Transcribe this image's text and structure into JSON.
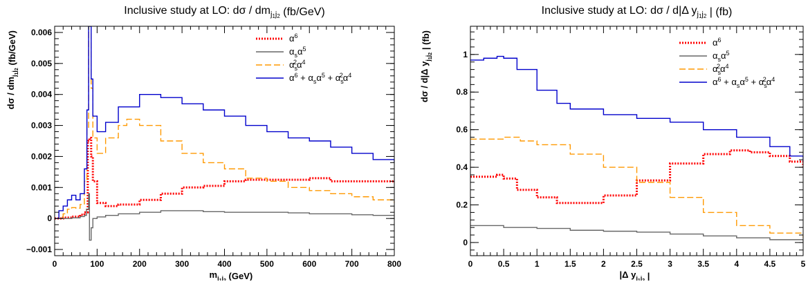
{
  "chart_data": [
    {
      "type": "line",
      "step": true,
      "title": "Inclusive study at LO: dσ / dm",
      "title_sub": "j",
      "title_subsub": "1",
      "title_sub2": "j",
      "title_subsub2": "2",
      "title_units": "(fb/GeV)",
      "xlabel": "m",
      "xlabel_sub": "j",
      "xlabel_subsub": "1",
      "xlabel_sub2": "j",
      "xlabel_subsub2": "2",
      "xlabel_units": "(GeV)",
      "ylabel": "dσ / dm",
      "ylabel_sub": "j",
      "ylabel_subsub": "1",
      "ylabel_sub2": "j",
      "ylabel_subsub2": "2",
      "ylabel_units": "(fb/GeV)",
      "xlim": [
        0,
        800
      ],
      "ylim": [
        -0.0012,
        0.0062
      ],
      "xticks": [
        0,
        100,
        200,
        300,
        400,
        500,
        600,
        700,
        800
      ],
      "xtick_labels": [
        "0",
        "100",
        "200",
        "300",
        "400",
        "500",
        "600",
        "700",
        "800"
      ],
      "yticks": [
        -0.001,
        0,
        0.001,
        0.002,
        0.003,
        0.004,
        0.005,
        0.006
      ],
      "ytick_labels": [
        "−0.001",
        "0",
        "0.001",
        "0.002",
        "0.003",
        "0.004",
        "0.005",
        "0.006"
      ],
      "legend_position": "top-right",
      "series": [
        {
          "name": "α6",
          "color": "#ff0000",
          "dash": "dotted",
          "x": [
            0,
            20,
            40,
            60,
            70,
            78,
            82,
            86,
            90,
            100,
            120,
            150,
            200,
            250,
            300,
            350,
            400,
            450,
            500,
            550,
            600,
            650,
            700,
            750,
            800
          ],
          "y": [
            0.0,
            3e-05,
            6e-05,
            0.00012,
            0.0002,
            0.0025,
            0.0026,
            0.002,
            0.0012,
            0.0005,
            0.0004,
            0.00045,
            0.0006,
            0.0008,
            0.001,
            0.00105,
            0.0012,
            0.00125,
            0.00125,
            0.00125,
            0.0013,
            0.0012,
            0.0012,
            0.0012,
            0.00117
          ]
        },
        {
          "name": "αsα5",
          "color": "#666666",
          "dash": "solid",
          "x": [
            0,
            20,
            40,
            60,
            70,
            75,
            80,
            82,
            86,
            90,
            100,
            120,
            150,
            200,
            250,
            300,
            350,
            400,
            450,
            500,
            550,
            600,
            650,
            700,
            750,
            800
          ],
          "y": [
            0.0,
            0.0,
            2e-05,
            6e-05,
            0.0001,
            0.0003,
            0.0008,
            -0.0007,
            -0.0003,
            0.0,
            5e-05,
            0.0001,
            0.00015,
            0.0002,
            0.00025,
            0.00025,
            0.00022,
            0.0002,
            0.0002,
            0.0002,
            0.00018,
            0.00015,
            0.00015,
            0.00012,
            0.0001,
            0.0001
          ]
        },
        {
          "name": "αs2α4",
          "color": "#ff9900",
          "dash": "dashed",
          "x": [
            0,
            20,
            30,
            40,
            50,
            60,
            70,
            76,
            80,
            83,
            86,
            90,
            100,
            120,
            150,
            170,
            200,
            250,
            300,
            350,
            400,
            450,
            500,
            550,
            600,
            650,
            700,
            750,
            800
          ],
          "y": [
            0.0,
            0.00015,
            0.0003,
            0.00035,
            0.00033,
            0.00045,
            0.0012,
            0.0029,
            0.006,
            0.006,
            0.0042,
            0.0026,
            0.0021,
            0.0026,
            0.003,
            0.0032,
            0.003,
            0.0025,
            0.0021,
            0.0018,
            0.0016,
            0.0013,
            0.0012,
            0.001,
            0.0009,
            0.0008,
            0.0007,
            0.0006,
            0.0005
          ]
        },
        {
          "name": "α6 + αsα5 + αs2α4",
          "color": "#0000cc",
          "dash": "solid",
          "x": [
            0,
            10,
            20,
            30,
            40,
            50,
            60,
            70,
            76,
            80,
            83,
            86,
            90,
            100,
            120,
            150,
            200,
            250,
            300,
            350,
            400,
            450,
            500,
            550,
            600,
            650,
            700,
            750,
            800
          ],
          "y": [
            0.0,
            0.00025,
            0.0004,
            0.0006,
            0.00075,
            0.0006,
            0.0008,
            0.0016,
            0.0035,
            0.0062,
            0.0062,
            0.0045,
            0.0033,
            0.0028,
            0.0031,
            0.0036,
            0.004,
            0.0039,
            0.0037,
            0.0035,
            0.0033,
            0.003,
            0.0028,
            0.0026,
            0.0025,
            0.0023,
            0.0021,
            0.0019,
            0.0018
          ]
        }
      ],
      "legend": [
        {
          "base": "α",
          "sup": "6",
          "sub": "",
          "extra": ""
        },
        {
          "base": "α",
          "sub": "s",
          "base2": "α",
          "sup2": "5"
        },
        {
          "base": "α",
          "sub": "s",
          "sup": "2",
          "base2": "α",
          "sup2": "4"
        },
        {
          "text": "α⁶ +  αₛα⁵ + αₛ²α⁴"
        }
      ]
    },
    {
      "type": "line",
      "step": true,
      "title": "Inclusive study at LO: dσ / d|Δ y",
      "title_sub": "j",
      "title_subsub": "1",
      "title_sub2": "j",
      "title_subsub2": "2",
      "title_units": "|  (fb)",
      "xlabel": "|Δ y",
      "xlabel_sub": "j",
      "xlabel_subsub": "1",
      "xlabel_sub2": "j",
      "xlabel_subsub2": "2",
      "xlabel_units": "|",
      "ylabel": "dσ / d|Δ y",
      "ylabel_sub": "j",
      "ylabel_subsub": "1",
      "ylabel_sub2": "j",
      "ylabel_subsub2": "2",
      "ylabel_units": "|  (fb)",
      "xlim": [
        0,
        5
      ],
      "ylim": [
        -0.07,
        1.15
      ],
      "xticks": [
        0,
        0.5,
        1,
        1.5,
        2,
        2.5,
        3,
        3.5,
        4,
        4.5,
        5
      ],
      "xtick_labels": [
        "0",
        "0.5",
        "1",
        "1.5",
        "2",
        "2.5",
        "3",
        "3.5",
        "4",
        "4.5",
        "5"
      ],
      "yticks": [
        0,
        0.2,
        0.4,
        0.6,
        0.8,
        1
      ],
      "ytick_labels": [
        "0",
        "0.2",
        "0.4",
        "0.6",
        "0.8",
        "1"
      ],
      "legend_position": "top-right",
      "series": [
        {
          "name": "α6",
          "color": "#ff0000",
          "dash": "dotted",
          "x": [
            0,
            0.2,
            0.4,
            0.5,
            0.7,
            1.0,
            1.3,
            1.6,
            2.0,
            2.5,
            3.0,
            3.5,
            3.9,
            4.2,
            4.5,
            4.8,
            5.0
          ],
          "y": [
            0.35,
            0.35,
            0.36,
            0.34,
            0.28,
            0.24,
            0.21,
            0.21,
            0.25,
            0.33,
            0.42,
            0.47,
            0.49,
            0.48,
            0.46,
            0.43,
            0.4
          ]
        },
        {
          "name": "αsα5",
          "color": "#666666",
          "dash": "solid",
          "x": [
            0,
            0.5,
            1.0,
            1.5,
            2.0,
            2.5,
            3.0,
            3.5,
            4.0,
            4.5,
            5.0
          ],
          "y": [
            0.09,
            0.08,
            0.075,
            0.065,
            0.06,
            0.055,
            0.045,
            0.035,
            0.025,
            0.015,
            0.01
          ]
        },
        {
          "name": "αs2α4",
          "color": "#ff9900",
          "dash": "dashed",
          "x": [
            0,
            0.25,
            0.5,
            0.75,
            1.0,
            1.5,
            2.0,
            2.5,
            3.0,
            3.5,
            4.0,
            4.5,
            5.0
          ],
          "y": [
            0.55,
            0.55,
            0.56,
            0.54,
            0.52,
            0.47,
            0.4,
            0.32,
            0.24,
            0.16,
            0.09,
            0.05,
            0.025
          ]
        },
        {
          "name": "α6 + αsα5 + αs2α4",
          "color": "#0000cc",
          "dash": "solid",
          "x": [
            0,
            0.2,
            0.4,
            0.5,
            0.7,
            1.0,
            1.3,
            1.5,
            2.0,
            2.5,
            3.0,
            3.5,
            4.0,
            4.5,
            4.8,
            5.0
          ],
          "y": [
            0.97,
            0.98,
            0.99,
            0.98,
            0.92,
            0.81,
            0.74,
            0.71,
            0.68,
            0.66,
            0.64,
            0.6,
            0.56,
            0.51,
            0.46,
            0.43
          ]
        }
      ]
    }
  ]
}
